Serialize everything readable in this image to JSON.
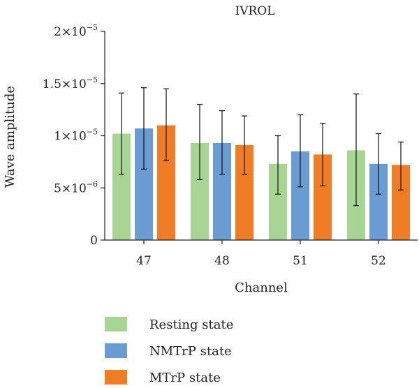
{
  "chart_data": {
    "type": "bar",
    "title": "IVROL",
    "xlabel": "Channel",
    "ylabel": "Wave amplitude",
    "categories": [
      "47",
      "48",
      "51",
      "52"
    ],
    "ylim": [
      0,
      2e-05
    ],
    "yticks": [
      {
        "value": 0,
        "mant": "0",
        "exp": ""
      },
      {
        "value": 5e-06,
        "mant": "5×10",
        "exp": "−6"
      },
      {
        "value": 1e-05,
        "mant": "1×10",
        "exp": "−5"
      },
      {
        "value": 1.5e-05,
        "mant": "1.5×10",
        "exp": "−5"
      },
      {
        "value": 2e-05,
        "mant": "2×10",
        "exp": "−5"
      }
    ],
    "series": [
      {
        "name": "Resting state",
        "color": "#a8d594",
        "values": [
          1.02e-05,
          9.3e-06,
          7.3e-06,
          8.6e-06
        ],
        "err_low": [
          6.3e-06,
          5.8e-06,
          4.4e-06,
          3.3e-06
        ],
        "err_high": [
          1.41e-05,
          1.3e-05,
          1e-05,
          1.4e-05
        ]
      },
      {
        "name": "NMTrP state",
        "color": "#6a9bd3",
        "values": [
          1.07e-05,
          9.3e-06,
          8.5e-06,
          7.3e-06
        ],
        "err_low": [
          6.8e-06,
          6.3e-06,
          5.1e-06,
          4.4e-06
        ],
        "err_high": [
          1.46e-05,
          1.24e-05,
          1.2e-05,
          1.02e-05
        ]
      },
      {
        "name": "MTrP state",
        "color": "#f07d25",
        "values": [
          1.1e-05,
          9.1e-06,
          8.2e-06,
          7.2e-06
        ],
        "err_low": [
          7.6e-06,
          6.3e-06,
          5.2e-06,
          4.8e-06
        ],
        "err_high": [
          1.45e-05,
          1.19e-05,
          1.12e-05,
          9.4e-06
        ]
      }
    ],
    "legend": "bottom-left",
    "grid": false
  }
}
